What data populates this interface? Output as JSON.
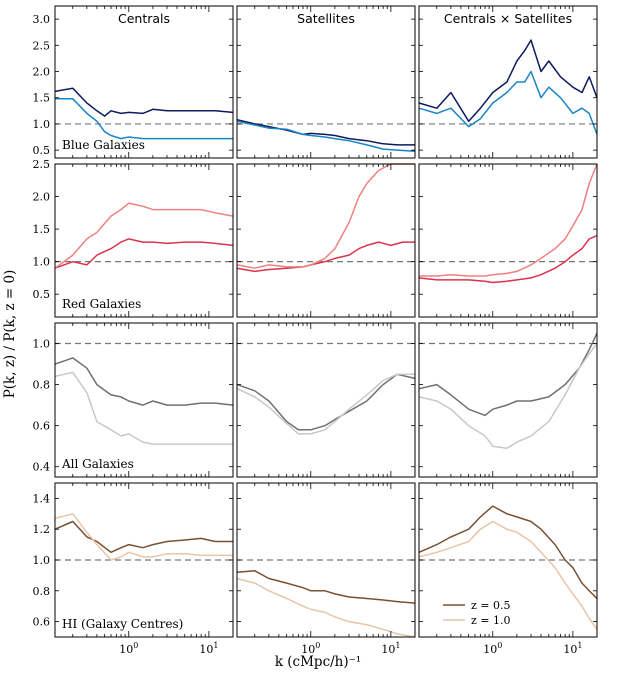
{
  "figure": {
    "xlabel": "k (cMpc/h)⁻¹",
    "ylabel": "P(k, z) / P(k, z = 0)",
    "legend": [
      "z = 0.5",
      "z = 1.0"
    ]
  },
  "chart_data": {
    "type": "line",
    "xscale": "log",
    "xlim": [
      0.12,
      20
    ],
    "reference_line": 1.0,
    "columns": [
      "Centrals",
      "Satellites",
      "Centrals × Satellites"
    ],
    "rows": [
      {
        "label": "Blue Galaxies",
        "ylim": [
          0.35,
          3.25
        ],
        "yticks": [
          0.5,
          1.0,
          1.5,
          2.0,
          2.5,
          3.0
        ],
        "ytick_labels": [
          "0.5",
          "1.0",
          "1.5",
          "2.0",
          "2.5",
          "3.0"
        ],
        "colors": {
          "z = 0.5": "#0d1b5e",
          "z = 1.0": "#1a85c4"
        },
        "panels": [
          {
            "x": [
              0.12,
              0.2,
              0.3,
              0.4,
              0.5,
              0.6,
              0.8,
              1,
              1.5,
              2,
              3,
              5,
              8,
              12,
              20
            ],
            "series": [
              {
                "name": "z = 0.5",
                "values": [
                  1.62,
                  1.68,
                  1.4,
                  1.25,
                  1.15,
                  1.25,
                  1.2,
                  1.22,
                  1.2,
                  1.28,
                  1.25,
                  1.25,
                  1.25,
                  1.25,
                  1.22
                ]
              },
              {
                "name": "z = 1.0",
                "values": [
                  1.48,
                  1.48,
                  1.2,
                  1.05,
                  0.85,
                  0.78,
                  0.72,
                  0.75,
                  0.72,
                  0.72,
                  0.72,
                  0.72,
                  0.72,
                  0.72,
                  0.72
                ]
              }
            ]
          },
          {
            "x": [
              0.12,
              0.2,
              0.3,
              0.5,
              0.8,
              1,
              1.5,
              2,
              3,
              5,
              8,
              12,
              20
            ],
            "series": [
              {
                "name": "z = 0.5",
                "values": [
                  1.08,
                  1.0,
                  0.95,
                  0.88,
                  0.8,
                  0.82,
                  0.8,
                  0.78,
                  0.72,
                  0.68,
                  0.62,
                  0.6,
                  0.6
                ]
              },
              {
                "name": "z = 1.0",
                "values": [
                  1.05,
                  0.98,
                  0.92,
                  0.9,
                  0.8,
                  0.78,
                  0.75,
                  0.72,
                  0.68,
                  0.6,
                  0.52,
                  0.5,
                  0.48
                ]
              }
            ]
          },
          {
            "x": [
              0.12,
              0.2,
              0.3,
              0.5,
              0.7,
              1,
              1.5,
              2,
              2.5,
              3,
              4,
              5,
              7,
              10,
              13,
              16,
              20
            ],
            "series": [
              {
                "name": "z = 0.5",
                "values": [
                  1.4,
                  1.3,
                  1.6,
                  1.05,
                  1.3,
                  1.6,
                  1.8,
                  2.2,
                  2.4,
                  2.6,
                  2.0,
                  2.2,
                  1.9,
                  1.7,
                  1.6,
                  1.9,
                  1.5
                ]
              },
              {
                "name": "z = 1.0",
                "values": [
                  1.3,
                  1.2,
                  1.3,
                  0.95,
                  1.1,
                  1.4,
                  1.6,
                  1.8,
                  1.8,
                  2.0,
                  1.5,
                  1.7,
                  1.5,
                  1.2,
                  1.3,
                  1.2,
                  0.8
                ]
              }
            ]
          }
        ]
      },
      {
        "label": "Red Galaxies",
        "ylim": [
          0.15,
          2.5
        ],
        "yticks": [
          0.5,
          1.0,
          1.5,
          2.0,
          2.5
        ],
        "ytick_labels": [
          "0.5",
          "1.0",
          "1.5",
          "2.0",
          "2.5"
        ],
        "colors": {
          "z = 0.5": "#d93350",
          "z = 1.0": "#f08080"
        },
        "panels": [
          {
            "x": [
              0.12,
              0.2,
              0.3,
              0.4,
              0.6,
              0.8,
              1,
              1.5,
              2,
              3,
              5,
              8,
              12,
              20
            ],
            "series": [
              {
                "name": "z = 0.5",
                "values": [
                  0.9,
                  1.0,
                  0.95,
                  1.1,
                  1.2,
                  1.3,
                  1.35,
                  1.3,
                  1.3,
                  1.28,
                  1.3,
                  1.3,
                  1.28,
                  1.25
                ]
              },
              {
                "name": "z = 1.0",
                "values": [
                  0.9,
                  1.1,
                  1.35,
                  1.45,
                  1.7,
                  1.8,
                  1.9,
                  1.85,
                  1.8,
                  1.8,
                  1.8,
                  1.8,
                  1.75,
                  1.7
                ]
              }
            ]
          },
          {
            "x": [
              0.12,
              0.2,
              0.3,
              0.5,
              0.8,
              1,
              1.5,
              2,
              3,
              4,
              5,
              7,
              10,
              14,
              20
            ],
            "series": [
              {
                "name": "z = 0.5",
                "values": [
                  0.9,
                  0.85,
                  0.88,
                  0.9,
                  0.92,
                  0.95,
                  1.0,
                  1.05,
                  1.1,
                  1.2,
                  1.25,
                  1.3,
                  1.25,
                  1.3,
                  1.3
                ]
              },
              {
                "name": "z = 1.0",
                "values": [
                  0.95,
                  0.9,
                  0.95,
                  0.92,
                  0.92,
                  0.95,
                  1.05,
                  1.2,
                  1.6,
                  2.0,
                  2.2,
                  2.4,
                  2.5,
                  2.5,
                  2.5
                ]
              }
            ]
          },
          {
            "x": [
              0.12,
              0.2,
              0.3,
              0.5,
              0.8,
              1,
              1.5,
              2,
              3,
              4,
              6,
              8,
              10,
              13,
              16,
              20
            ],
            "series": [
              {
                "name": "z = 0.5",
                "values": [
                  0.75,
                  0.72,
                  0.72,
                  0.72,
                  0.7,
                  0.68,
                  0.7,
                  0.72,
                  0.75,
                  0.8,
                  0.9,
                  1.0,
                  1.1,
                  1.2,
                  1.35,
                  1.4
                ]
              },
              {
                "name": "z = 1.0",
                "values": [
                  0.78,
                  0.78,
                  0.8,
                  0.78,
                  0.78,
                  0.8,
                  0.82,
                  0.85,
                  0.95,
                  1.05,
                  1.2,
                  1.35,
                  1.55,
                  1.8,
                  2.2,
                  2.5
                ]
              }
            ]
          }
        ]
      },
      {
        "label": "All Galaxies",
        "ylim": [
          0.35,
          1.1
        ],
        "yticks": [
          0.4,
          0.6,
          0.8,
          1.0
        ],
        "ytick_labels": [
          "0.4",
          "0.6",
          "0.8",
          "1.0"
        ],
        "colors": {
          "z = 0.5": "#707070",
          "z = 1.0": "#c8c8c8"
        },
        "panels": [
          {
            "x": [
              0.12,
              0.2,
              0.3,
              0.4,
              0.6,
              0.8,
              1,
              1.5,
              2,
              3,
              5,
              8,
              12,
              20
            ],
            "series": [
              {
                "name": "z = 0.5",
                "values": [
                  0.9,
                  0.93,
                  0.88,
                  0.8,
                  0.75,
                  0.74,
                  0.72,
                  0.7,
                  0.72,
                  0.7,
                  0.7,
                  0.71,
                  0.71,
                  0.7
                ]
              },
              {
                "name": "z = 1.0",
                "values": [
                  0.84,
                  0.86,
                  0.76,
                  0.62,
                  0.58,
                  0.55,
                  0.56,
                  0.52,
                  0.51,
                  0.51,
                  0.51,
                  0.51,
                  0.51,
                  0.51
                ]
              }
            ]
          },
          {
            "x": [
              0.12,
              0.2,
              0.3,
              0.5,
              0.7,
              1,
              1.5,
              2,
              3,
              5,
              8,
              12,
              20
            ],
            "series": [
              {
                "name": "z = 0.5",
                "values": [
                  0.8,
                  0.77,
                  0.72,
                  0.62,
                  0.58,
                  0.58,
                  0.6,
                  0.63,
                  0.67,
                  0.72,
                  0.8,
                  0.85,
                  0.83
                ]
              },
              {
                "name": "z = 1.0",
                "values": [
                  0.78,
                  0.74,
                  0.69,
                  0.61,
                  0.56,
                  0.56,
                  0.58,
                  0.62,
                  0.68,
                  0.75,
                  0.82,
                  0.85,
                  0.85
                ]
              }
            ]
          },
          {
            "x": [
              0.12,
              0.2,
              0.3,
              0.5,
              0.8,
              1,
              1.5,
              2,
              3,
              5,
              8,
              12,
              16,
              20
            ],
            "series": [
              {
                "name": "z = 0.5",
                "values": [
                  0.78,
                  0.8,
                  0.75,
                  0.68,
                  0.65,
                  0.68,
                  0.7,
                  0.72,
                  0.72,
                  0.74,
                  0.8,
                  0.88,
                  0.97,
                  1.05
                ]
              },
              {
                "name": "z = 1.0",
                "values": [
                  0.74,
                  0.72,
                  0.68,
                  0.6,
                  0.55,
                  0.5,
                  0.49,
                  0.52,
                  0.55,
                  0.62,
                  0.75,
                  0.88,
                  0.95,
                  1.0
                ]
              }
            ]
          }
        ]
      },
      {
        "label": "HI (Galaxy Centres)",
        "ylim": [
          0.5,
          1.5
        ],
        "yticks": [
          0.6,
          0.8,
          1.0,
          1.2,
          1.4
        ],
        "ytick_labels": [
          "0.6",
          "0.8",
          "1.0",
          "1.2",
          "1.4"
        ],
        "colors": {
          "z = 0.5": "#7a5033",
          "z = 1.0": "#e8c4a8"
        },
        "panels": [
          {
            "x": [
              0.12,
              0.2,
              0.3,
              0.4,
              0.6,
              0.8,
              1,
              1.5,
              2,
              3,
              5,
              8,
              12,
              20
            ],
            "series": [
              {
                "name": "z = 0.5",
                "values": [
                  1.2,
                  1.25,
                  1.15,
                  1.12,
                  1.05,
                  1.08,
                  1.1,
                  1.08,
                  1.1,
                  1.12,
                  1.13,
                  1.14,
                  1.12,
                  1.12
                ]
              },
              {
                "name": "z = 1.0",
                "values": [
                  1.27,
                  1.3,
                  1.18,
                  1.1,
                  1.0,
                  1.02,
                  1.05,
                  1.02,
                  1.02,
                  1.04,
                  1.04,
                  1.03,
                  1.03,
                  1.03
                ]
              }
            ]
          },
          {
            "x": [
              0.12,
              0.2,
              0.3,
              0.5,
              0.8,
              1,
              1.5,
              2,
              3,
              5,
              8,
              12,
              20
            ],
            "series": [
              {
                "name": "z = 0.5",
                "values": [
                  0.92,
                  0.93,
                  0.88,
                  0.85,
                  0.82,
                  0.8,
                  0.8,
                  0.78,
                  0.76,
                  0.75,
                  0.74,
                  0.73,
                  0.72
                ]
              },
              {
                "name": "z = 1.0",
                "values": [
                  0.88,
                  0.85,
                  0.8,
                  0.75,
                  0.7,
                  0.68,
                  0.66,
                  0.63,
                  0.6,
                  0.58,
                  0.55,
                  0.52,
                  0.5
                ]
              }
            ]
          },
          {
            "x": [
              0.12,
              0.2,
              0.3,
              0.5,
              0.7,
              1,
              1.5,
              2,
              3,
              4,
              6,
              8,
              10,
              13,
              16,
              20
            ],
            "series": [
              {
                "name": "z = 0.5",
                "values": [
                  1.05,
                  1.1,
                  1.15,
                  1.2,
                  1.28,
                  1.35,
                  1.3,
                  1.28,
                  1.25,
                  1.2,
                  1.1,
                  1.0,
                  0.95,
                  0.85,
                  0.8,
                  0.75
                ]
              },
              {
                "name": "z = 1.0",
                "values": [
                  1.02,
                  1.05,
                  1.08,
                  1.12,
                  1.2,
                  1.25,
                  1.2,
                  1.18,
                  1.12,
                  1.05,
                  0.95,
                  0.85,
                  0.78,
                  0.7,
                  0.62,
                  0.55
                ]
              }
            ]
          }
        ]
      }
    ]
  }
}
